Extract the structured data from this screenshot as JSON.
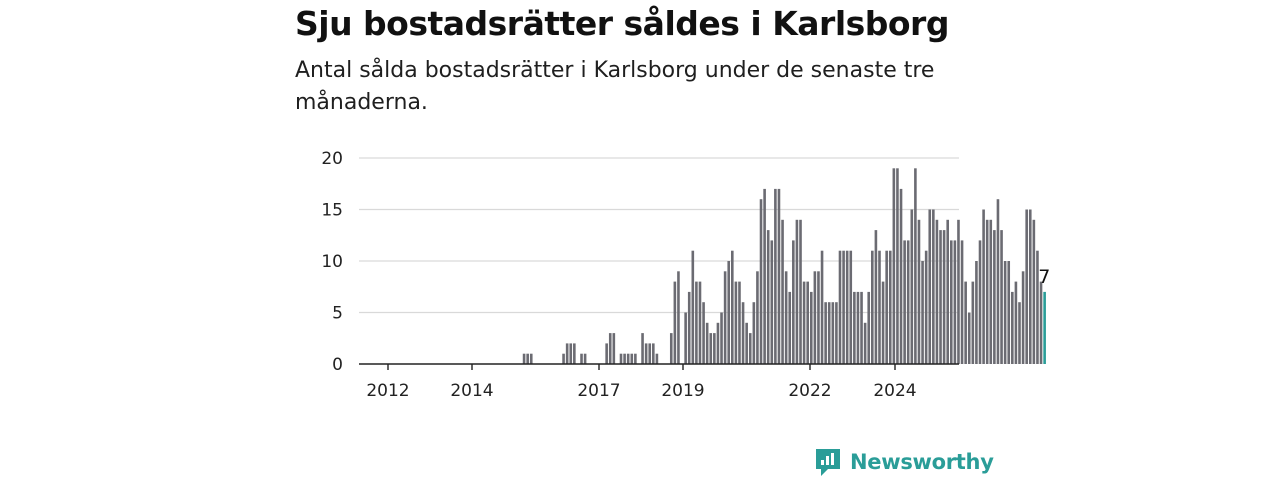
{
  "header": {
    "title": "Sju bostadsrätter såldes i Karlsborg",
    "subtitle": "Antal sålda bostadsrätter i Karlsborg under de senaste tre månaderna."
  },
  "brand": {
    "name": "Newsworthy",
    "color": "#2a9d98"
  },
  "colors": {
    "bar": "#6b6b72",
    "highlight": "#2a9d98",
    "grid": "#d9d9d9",
    "axis": "#222222"
  },
  "chart_data": {
    "type": "bar",
    "x_tick_labels": [
      "2012",
      "2014",
      "2017",
      "2019",
      "2022",
      "2024"
    ],
    "y_ticks": [
      0,
      5,
      10,
      15,
      20
    ],
    "ylim": [
      0,
      20
    ],
    "grid": true,
    "highlight_label": "7",
    "values": [
      0,
      0,
      0,
      0,
      0,
      0,
      0,
      0,
      0,
      0,
      0,
      0,
      0,
      0,
      0,
      0,
      0,
      0,
      0,
      0,
      0,
      0,
      0,
      0,
      0,
      0,
      0,
      0,
      0,
      0,
      0,
      0,
      0,
      0,
      0,
      0,
      0,
      0,
      0,
      0,
      0,
      0,
      1,
      1,
      1,
      0,
      0,
      0,
      0,
      0,
      0,
      0,
      0,
      1,
      2,
      2,
      2,
      0,
      1,
      1,
      0,
      0,
      0,
      0,
      0,
      2,
      3,
      3,
      0,
      1,
      1,
      1,
      1,
      1,
      0,
      3,
      2,
      2,
      2,
      1,
      0,
      0,
      0,
      3,
      8,
      9,
      0,
      5,
      7,
      11,
      8,
      8,
      6,
      4,
      3,
      3,
      4,
      5,
      9,
      10,
      11,
      8,
      8,
      6,
      4,
      3,
      6,
      9,
      16,
      17,
      13,
      12,
      17,
      17,
      14,
      9,
      7,
      12,
      14,
      14,
      8,
      8,
      7,
      9,
      9,
      11,
      6,
      6,
      6,
      6,
      11,
      11,
      11,
      11,
      7,
      7,
      7,
      4,
      7,
      11,
      13,
      11,
      8,
      11,
      11,
      19,
      19,
      17,
      12,
      12,
      15,
      19,
      14,
      10,
      11,
      15,
      15,
      14,
      13,
      13,
      14,
      12,
      12,
      14,
      12,
      8,
      5,
      8,
      10,
      12,
      15,
      14,
      14,
      13,
      16,
      13,
      10,
      10,
      7,
      8,
      6,
      9,
      15,
      15,
      14,
      11,
      8,
      7
    ]
  }
}
